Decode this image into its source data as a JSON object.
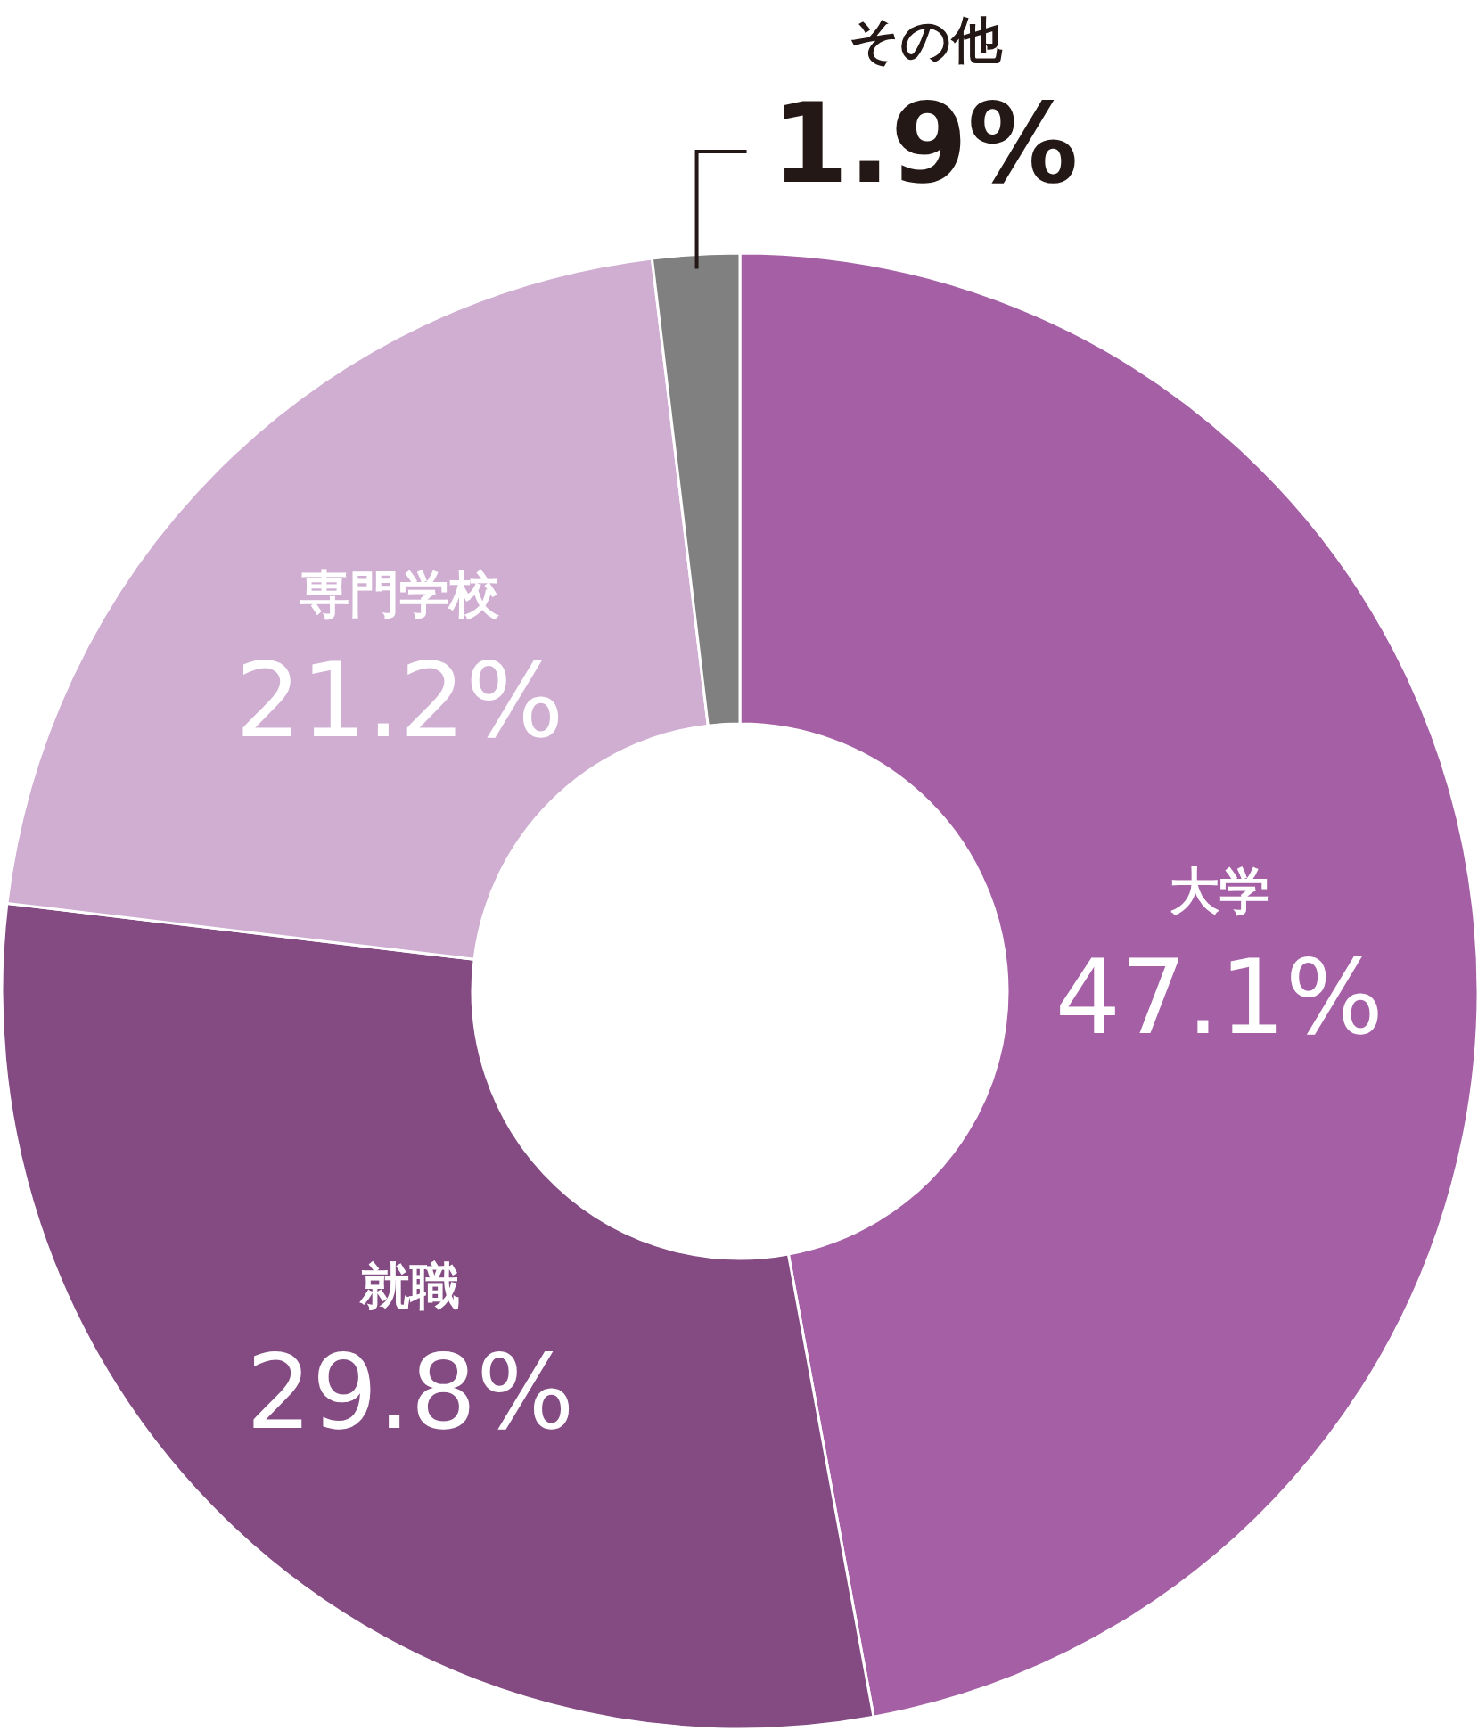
{
  "chart_data": {
    "type": "donut",
    "categories": [
      "大学",
      "就職",
      "専門学校",
      "その他"
    ],
    "values": [
      47.1,
      29.8,
      21.2,
      1.9
    ],
    "value_labels": [
      "47.1%",
      "29.8%",
      "21.2%",
      "1.9%"
    ],
    "colors": [
      "#a560a5",
      "#834b82",
      "#cfaed2",
      "#808080"
    ]
  }
}
